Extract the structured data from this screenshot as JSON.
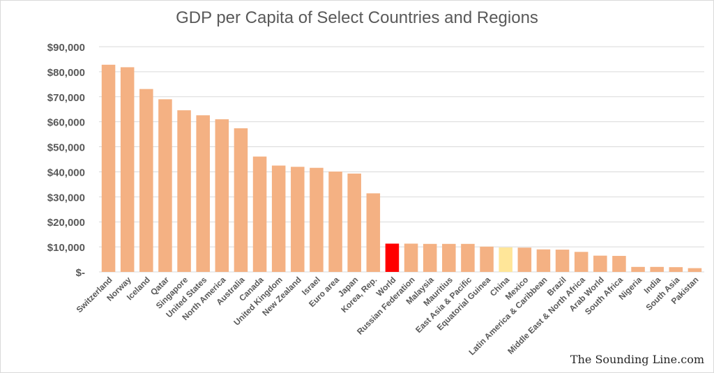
{
  "chart_data": {
    "type": "bar",
    "title": "GDP per Capita of Select Countries and Regions",
    "xlabel": "",
    "ylabel": "",
    "ylim": [
      0,
      90000
    ],
    "grid": true,
    "y_ticks": [
      0,
      10000,
      20000,
      30000,
      40000,
      50000,
      60000,
      70000,
      80000,
      90000
    ],
    "y_tick_labels": [
      "$-",
      "$10,000",
      "$20,000",
      "$30,000",
      "$40,000",
      "$50,000",
      "$60,000",
      "$70,000",
      "$80,000",
      "$90,000"
    ],
    "categories": [
      "Switzerland",
      "Norway",
      "Iceland",
      "Qatar",
      "Singapore",
      "United States",
      "North America",
      "Australia",
      "Canada",
      "United Kingdom",
      "New Zealand",
      "Israel",
      "Euro area",
      "Japan",
      "Korea, Rep.",
      "World",
      "Russian Federation",
      "Malaysia",
      "Mauritius",
      "East Asia & Pacific",
      "Equatorial Guinea",
      "China",
      "Mexico",
      "Latin America & Caribbean",
      "Brazil",
      "Middle East & North Africa",
      "Arab World",
      "South Africa",
      "Nigeria",
      "India",
      "South Asia",
      "Pakistan"
    ],
    "values": [
      82800,
      81800,
      73100,
      69000,
      64600,
      62600,
      61000,
      57400,
      46100,
      42500,
      42000,
      41600,
      40100,
      39300,
      31400,
      11300,
      11300,
      11200,
      11200,
      11200,
      10100,
      9800,
      9700,
      9000,
      8900,
      8000,
      6500,
      6400,
      2000,
      2000,
      1900,
      1500
    ],
    "colors": {
      "default": "#f4b183",
      "World": "#ff0000",
      "China": "#ffe699",
      "grid": "#d9d9d9",
      "axis_text": "#595959"
    }
  },
  "watermark": "The Sounding Line.com"
}
